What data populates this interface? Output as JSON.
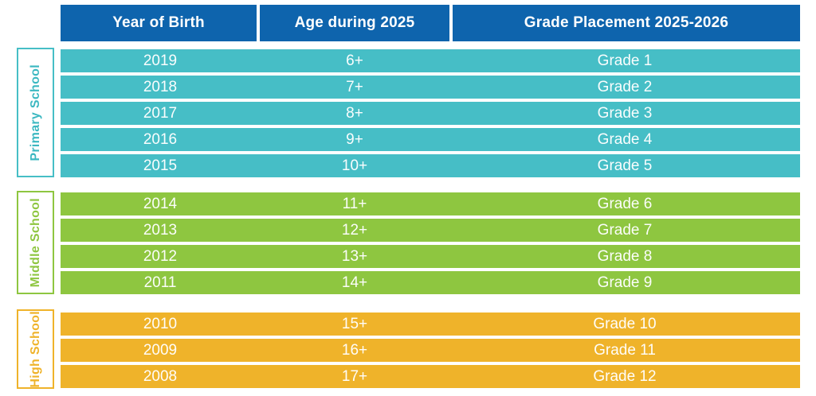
{
  "table": {
    "columns": [
      "Year of Birth",
      "Age during 2025",
      "Grade Placement 2025-2026"
    ],
    "sections": [
      {
        "label": "Primary School",
        "accent_color": "#46BEC6",
        "rows": [
          {
            "year": "2019",
            "age": "6+",
            "grade": "Grade 1"
          },
          {
            "year": "2018",
            "age": "7+",
            "grade": "Grade 2"
          },
          {
            "year": "2017",
            "age": "8+",
            "grade": "Grade 3"
          },
          {
            "year": "2016",
            "age": "9+",
            "grade": "Grade 4"
          },
          {
            "year": "2015",
            "age": "10+",
            "grade": "Grade 5"
          }
        ]
      },
      {
        "label": "Middle School",
        "accent_color": "#8EC640",
        "rows": [
          {
            "year": "2014",
            "age": "11+",
            "grade": "Grade 6"
          },
          {
            "year": "2013",
            "age": "12+",
            "grade": "Grade 7"
          },
          {
            "year": "2012",
            "age": "13+",
            "grade": "Grade 8"
          },
          {
            "year": "2011",
            "age": "14+",
            "grade": "Grade 9"
          }
        ]
      },
      {
        "label": "High School",
        "accent_color": "#EFB32A",
        "rows": [
          {
            "year": "2010",
            "age": "15+",
            "grade": "Grade 10"
          },
          {
            "year": "2009",
            "age": "16+",
            "grade": "Grade 11"
          },
          {
            "year": "2008",
            "age": "17+",
            "grade": "Grade 12"
          }
        ]
      }
    ],
    "colors": {
      "header_bg": "#0E64AD",
      "header_text": "#FFFFFF",
      "row_text": "#FFFFFF",
      "background": "#FFFFFF"
    }
  },
  "chart_data": {
    "type": "table",
    "title": "",
    "columns": [
      "Year of Birth",
      "Age during 2025",
      "Grade Placement 2025-2026"
    ],
    "row_groups": [
      {
        "group": "Primary School",
        "rows": [
          [
            "2019",
            "6+",
            "Grade 1"
          ],
          [
            "2018",
            "7+",
            "Grade 2"
          ],
          [
            "2017",
            "8+",
            "Grade 3"
          ],
          [
            "2016",
            "9+",
            "Grade 4"
          ],
          [
            "2015",
            "10+",
            "Grade 5"
          ]
        ]
      },
      {
        "group": "Middle School",
        "rows": [
          [
            "2014",
            "11+",
            "Grade 6"
          ],
          [
            "2013",
            "12+",
            "Grade 7"
          ],
          [
            "2012",
            "13+",
            "Grade 8"
          ],
          [
            "2011",
            "14+",
            "Grade 9"
          ]
        ]
      },
      {
        "group": "High School",
        "rows": [
          [
            "2010",
            "15+",
            "Grade 10"
          ],
          [
            "2009",
            "16+",
            "Grade 11"
          ],
          [
            "2008",
            "17+",
            "Grade 12"
          ]
        ]
      }
    ]
  }
}
